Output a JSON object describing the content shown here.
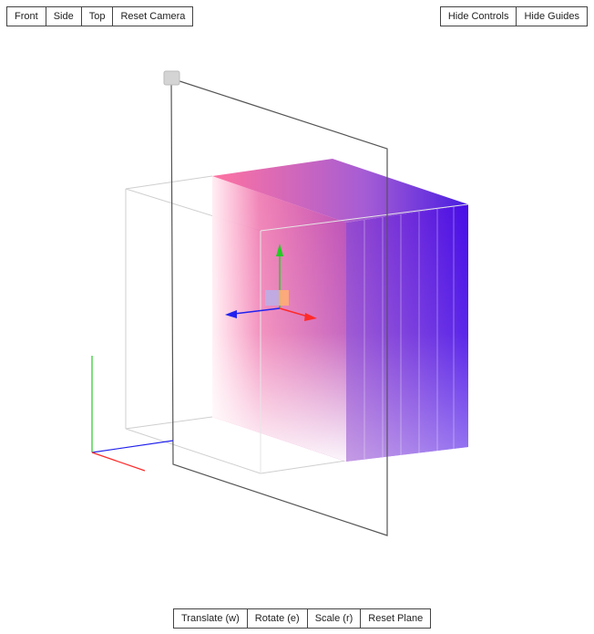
{
  "camera_controls": {
    "front": "Front",
    "side": "Side",
    "top": "Top",
    "reset_camera": "Reset Camera"
  },
  "panel_toggles": {
    "hide_controls": "Hide Controls",
    "hide_guides": "Hide Guides"
  },
  "plane_controls": {
    "translate": "Translate (w)",
    "rotate": "Rotate (e)",
    "scale": "Scale (r)",
    "reset_plane": "Reset Plane"
  },
  "colors": {
    "volume_red": "#ff3a80",
    "volume_blue": "#3d00e6",
    "axis_x": "#ff2a2a",
    "axis_y": "#22cc22",
    "axis_z": "#2222ee",
    "guide_box": "#cfcfcf",
    "plane_outline": "#555555"
  }
}
